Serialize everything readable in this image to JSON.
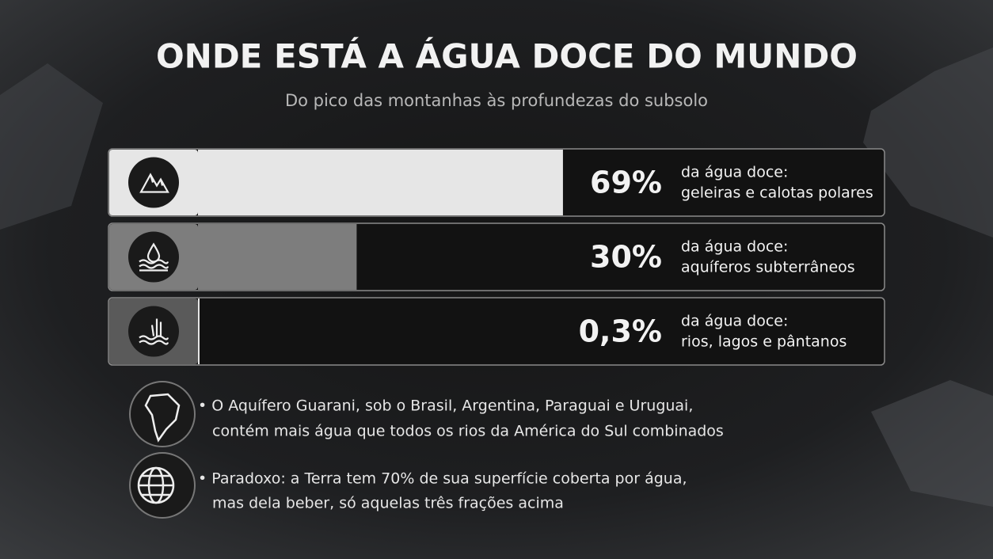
{
  "chart_data": {
    "type": "bar",
    "orientation": "horizontal",
    "title": "ONDE ESTÁ A ÁGUA DOCE DO MUNDO",
    "subtitle": "Do pico das montanhas às profundezas do subsolo",
    "categories": [
      "geleiras e calotas polares",
      "aquíferos subterrâneos",
      "rios, lagos e pântanos"
    ],
    "value_captions": [
      "da água doce:",
      "da água doce:",
      "da água doce:"
    ],
    "values": [
      69,
      30,
      0.3
    ],
    "value_labels": [
      "69%",
      "30%",
      "0,3%"
    ],
    "colors": [
      "#e6e6e6",
      "#7d7d7d",
      "#e6e6e6"
    ],
    "xlim": [
      0,
      100
    ]
  },
  "notes": [
    [
      "• O Aquífero Guarani, sob o Brasil, Argentina, Paraguai e Uruguai,",
      "contém mais água que todos os rios da América do Sul combinados"
    ],
    [
      "• Paradoxo: a Terra tem 70% de sua superfície coberta por água,",
      "mas dela beber, só aquelas três frações acima"
    ]
  ]
}
